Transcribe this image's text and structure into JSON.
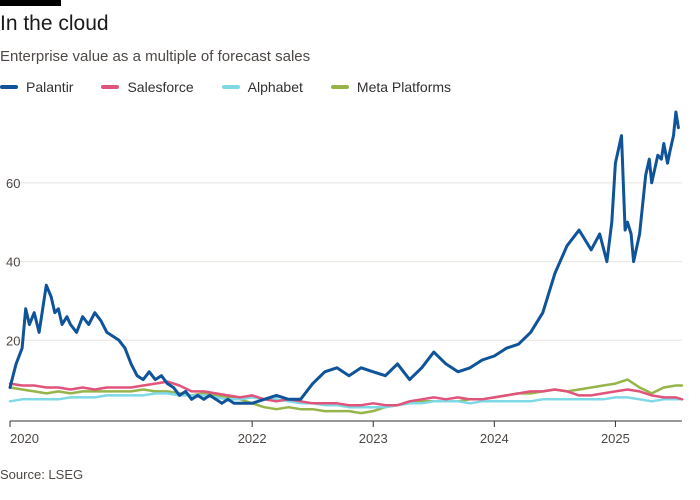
{
  "header": {
    "title": "In the cloud",
    "subtitle": "Enterprise value as a multiple of forecast sales"
  },
  "footer": {
    "source": "Source: LSEG"
  },
  "colors": {
    "Palantir": "#0f5499",
    "Salesforce": "#e0547c",
    "Alphabet": "#7fd8e6",
    "Meta Platforms": "#96b44a",
    "grid": "#e8e4e0",
    "axis": "#33302e",
    "accent_bar": "#000000"
  },
  "chart_data": {
    "type": "line",
    "title": "In the cloud",
    "subtitle": "Enterprise value as a multiple of forecast sales",
    "xlabel": "",
    "ylabel": "",
    "xlim": [
      2020.0,
      2025.55
    ],
    "ylim": [
      0,
      78
    ],
    "y_ticks": [
      20,
      40,
      60
    ],
    "x_ticks": [
      {
        "value": 2020,
        "label": "2020"
      },
      {
        "value": 2022,
        "label": "2022"
      },
      {
        "value": 2023,
        "label": "2023"
      },
      {
        "value": 2024,
        "label": "2024"
      },
      {
        "value": 2025,
        "label": "2025"
      }
    ],
    "grid": "horizontal",
    "legend": "top-left",
    "series": [
      {
        "name": "Palantir",
        "x": [
          2020.0,
          2020.05,
          2020.1,
          2020.13,
          2020.16,
          2020.2,
          2020.24,
          2020.27,
          2020.3,
          2020.34,
          2020.37,
          2020.4,
          2020.43,
          2020.47,
          2020.5,
          2020.55,
          2020.6,
          2020.65,
          2020.7,
          2020.75,
          2020.8,
          2020.85,
          2020.9,
          2020.95,
          2021.0,
          2021.05,
          2021.1,
          2021.15,
          2021.2,
          2021.25,
          2021.3,
          2021.35,
          2021.4,
          2021.45,
          2021.5,
          2021.55,
          2021.6,
          2021.65,
          2021.7,
          2021.75,
          2021.8,
          2021.85,
          2021.9,
          2022.0,
          2022.1,
          2022.2,
          2022.3,
          2022.4,
          2022.5,
          2022.6,
          2022.7,
          2022.8,
          2022.9,
          2023.0,
          2023.1,
          2023.2,
          2023.3,
          2023.4,
          2023.5,
          2023.6,
          2023.7,
          2023.8,
          2023.9,
          2024.0,
          2024.1,
          2024.2,
          2024.3,
          2024.4,
          2024.5,
          2024.6,
          2024.7,
          2024.8,
          2024.87,
          2024.93,
          2024.97,
          2025.0,
          2025.05,
          2025.08,
          2025.1,
          2025.13,
          2025.15,
          2025.2,
          2025.25,
          2025.28,
          2025.3,
          2025.35,
          2025.38,
          2025.4,
          2025.43,
          2025.45,
          2025.48,
          2025.5,
          2025.52
        ],
        "values": [
          8,
          14,
          18,
          28,
          24,
          27,
          22,
          28,
          34,
          31,
          27,
          28,
          24,
          26,
          24,
          22,
          26,
          24,
          27,
          25,
          22,
          21,
          20,
          18,
          14,
          11,
          10,
          12,
          10,
          11,
          9,
          8,
          6,
          7,
          5,
          6,
          5,
          6,
          5,
          4,
          5,
          4,
          4,
          4,
          5,
          6,
          5,
          5,
          9,
          12,
          13,
          11,
          13,
          12,
          11,
          14,
          10,
          13,
          17,
          14,
          12,
          13,
          15,
          16,
          18,
          19,
          22,
          27,
          37,
          44,
          48,
          43,
          47,
          40,
          50,
          65,
          72,
          48,
          50,
          47,
          40,
          47,
          62,
          66,
          60,
          67,
          66,
          70,
          65,
          68,
          72,
          78,
          74
        ]
      },
      {
        "name": "Salesforce",
        "x": [
          2020.0,
          2020.1,
          2020.2,
          2020.3,
          2020.4,
          2020.5,
          2020.6,
          2020.7,
          2020.8,
          2020.9,
          2021.0,
          2021.1,
          2021.2,
          2021.3,
          2021.4,
          2021.5,
          2021.6,
          2021.7,
          2021.8,
          2021.9,
          2022.0,
          2022.1,
          2022.2,
          2022.3,
          2022.4,
          2022.5,
          2022.6,
          2022.7,
          2022.8,
          2022.9,
          2023.0,
          2023.1,
          2023.2,
          2023.3,
          2023.4,
          2023.5,
          2023.6,
          2023.7,
          2023.8,
          2023.9,
          2024.0,
          2024.1,
          2024.2,
          2024.3,
          2024.4,
          2024.5,
          2024.6,
          2024.7,
          2024.8,
          2024.9,
          2025.0,
          2025.1,
          2025.2,
          2025.3,
          2025.4,
          2025.5,
          2025.55
        ],
        "values": [
          9,
          8.5,
          8.5,
          8,
          8,
          7.5,
          8,
          7.5,
          8,
          8,
          8,
          8.5,
          9,
          9.5,
          8.5,
          7,
          7,
          6.5,
          6,
          5.5,
          6,
          5,
          4.5,
          5,
          4.5,
          4,
          4,
          4,
          3.5,
          3.5,
          4,
          3.5,
          3.5,
          4.5,
          5,
          5.5,
          5,
          5.5,
          5,
          5,
          5.5,
          6,
          6.5,
          7,
          7,
          7.5,
          7,
          6,
          6,
          6.5,
          7,
          7.5,
          7,
          6,
          5.5,
          5.5,
          5
        ]
      },
      {
        "name": "Alphabet",
        "x": [
          2020.0,
          2020.1,
          2020.2,
          2020.3,
          2020.4,
          2020.5,
          2020.6,
          2020.7,
          2020.8,
          2020.9,
          2021.0,
          2021.1,
          2021.2,
          2021.3,
          2021.4,
          2021.5,
          2021.6,
          2021.7,
          2021.8,
          2021.9,
          2022.0,
          2022.1,
          2022.2,
          2022.3,
          2022.4,
          2022.5,
          2022.6,
          2022.7,
          2022.8,
          2022.9,
          2023.0,
          2023.1,
          2023.2,
          2023.3,
          2023.4,
          2023.5,
          2023.6,
          2023.7,
          2023.8,
          2023.9,
          2024.0,
          2024.1,
          2024.2,
          2024.3,
          2024.4,
          2024.5,
          2024.6,
          2024.7,
          2024.8,
          2024.9,
          2025.0,
          2025.1,
          2025.2,
          2025.3,
          2025.4,
          2025.5,
          2025.55
        ],
        "values": [
          4.5,
          5,
          5,
          5,
          5,
          5.5,
          5.5,
          5.5,
          6,
          6,
          6,
          6,
          6.5,
          6.5,
          6,
          6,
          6,
          5.5,
          5,
          5,
          5.5,
          5,
          5,
          4.5,
          4,
          4,
          3.5,
          3.5,
          3,
          3,
          3,
          3,
          3.5,
          4,
          4,
          4.5,
          4.5,
          4.5,
          4,
          4.5,
          4.5,
          4.5,
          4.5,
          4.5,
          5,
          5,
          5,
          5,
          5,
          5,
          5.5,
          5.5,
          5,
          4.5,
          5,
          5,
          5
        ]
      },
      {
        "name": "Meta Platforms",
        "x": [
          2020.0,
          2020.1,
          2020.2,
          2020.3,
          2020.4,
          2020.5,
          2020.6,
          2020.7,
          2020.8,
          2020.9,
          2021.0,
          2021.1,
          2021.2,
          2021.3,
          2021.4,
          2021.5,
          2021.6,
          2021.7,
          2021.8,
          2021.9,
          2022.0,
          2022.1,
          2022.2,
          2022.3,
          2022.4,
          2022.5,
          2022.6,
          2022.7,
          2022.8,
          2022.9,
          2023.0,
          2023.1,
          2023.2,
          2023.3,
          2023.4,
          2023.5,
          2023.6,
          2023.7,
          2023.8,
          2023.9,
          2024.0,
          2024.1,
          2024.2,
          2024.3,
          2024.4,
          2024.5,
          2024.6,
          2024.7,
          2024.8,
          2024.9,
          2025.0,
          2025.1,
          2025.2,
          2025.3,
          2025.4,
          2025.5,
          2025.55
        ],
        "values": [
          8,
          7.5,
          7,
          6.5,
          7,
          6.5,
          7,
          7,
          7,
          7,
          7,
          7.5,
          7,
          7,
          6.5,
          6,
          6.5,
          6,
          5.5,
          5,
          4,
          3,
          2.5,
          3,
          2.5,
          2.5,
          2,
          2,
          2,
          1.5,
          2,
          3,
          3.5,
          4,
          4.5,
          4.5,
          4.5,
          4.5,
          5,
          5,
          5.5,
          6,
          6.5,
          6.5,
          7,
          7.5,
          7,
          7.5,
          8,
          8.5,
          9,
          10,
          8,
          6.5,
          8,
          8.5,
          8.5
        ]
      }
    ]
  }
}
